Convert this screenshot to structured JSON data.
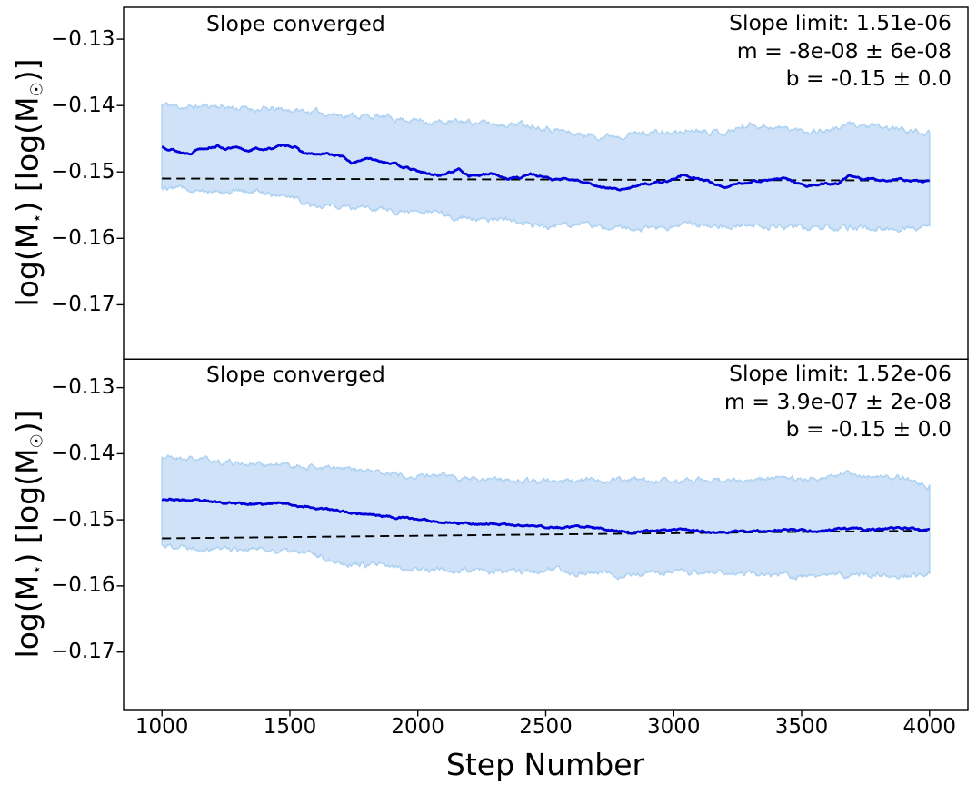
{
  "figure": {
    "xlabel": "Step Number",
    "ylabel_parts": {
      "p1": "log(M",
      "s1": "⋆",
      "p2": ") [log(M",
      "s2": "☉",
      "p3": ")]"
    },
    "x_ticks": [
      1000,
      1500,
      2000,
      2500,
      3000,
      3500,
      4000
    ],
    "x_tick_labels": [
      "1000",
      "1500",
      "2000",
      "2500",
      "3000",
      "3500",
      "4000"
    ],
    "colors": {
      "mean_line": "#0000d8",
      "band_fill": "#cfe2f8",
      "band_edge": "#aed2f2",
      "fit_dashed": "#000000",
      "frame": "#000000",
      "background": "#ffffff"
    }
  },
  "chart_data": [
    {
      "type": "line",
      "annotation": "Slope converged",
      "info_lines": {
        "l1": "Slope limit: 1.51e-06",
        "l2": "m = -8e-08 ± 6e-08",
        "l3": "b = -0.15 ± 0.0"
      },
      "xlim": [
        850,
        4150
      ],
      "ylim": [
        -0.1782,
        -0.1252
      ],
      "grid": false,
      "legend": null,
      "y_ticks": [
        -0.13,
        -0.14,
        -0.15,
        -0.16,
        -0.17
      ],
      "y_tick_labels": [
        "−0.13",
        "−0.14",
        "−0.15",
        "−0.16",
        "−0.17"
      ],
      "fit": {
        "x": [
          1000,
          4000
        ],
        "y": [
          -0.151,
          -0.1513
        ]
      },
      "series": {
        "mean": [
          [
            1000,
            -0.1462
          ],
          [
            1040,
            -0.1466
          ],
          [
            1075,
            -0.1471
          ],
          [
            1110,
            -0.1472
          ],
          [
            1140,
            -0.1465
          ],
          [
            1180,
            -0.1463
          ],
          [
            1215,
            -0.1461
          ],
          [
            1250,
            -0.1465
          ],
          [
            1290,
            -0.1464
          ],
          [
            1330,
            -0.1468
          ],
          [
            1370,
            -0.1465
          ],
          [
            1410,
            -0.1466
          ],
          [
            1455,
            -0.1462
          ],
          [
            1490,
            -0.1459
          ],
          [
            1520,
            -0.1463
          ],
          [
            1555,
            -0.1472
          ],
          [
            1600,
            -0.1474
          ],
          [
            1650,
            -0.1473
          ],
          [
            1700,
            -0.1476
          ],
          [
            1745,
            -0.1487
          ],
          [
            1790,
            -0.148
          ],
          [
            1840,
            -0.1482
          ],
          [
            1890,
            -0.1486
          ],
          [
            1940,
            -0.1492
          ],
          [
            1990,
            -0.1498
          ],
          [
            2040,
            -0.1503
          ],
          [
            2090,
            -0.1505
          ],
          [
            2130,
            -0.15
          ],
          [
            2160,
            -0.1496
          ],
          [
            2200,
            -0.1505
          ],
          [
            2250,
            -0.1505
          ],
          [
            2300,
            -0.1503
          ],
          [
            2350,
            -0.151
          ],
          [
            2400,
            -0.1508
          ],
          [
            2440,
            -0.1503
          ],
          [
            2480,
            -0.1506
          ],
          [
            2530,
            -0.1512
          ],
          [
            2575,
            -0.1511
          ],
          [
            2620,
            -0.1513
          ],
          [
            2680,
            -0.1518
          ],
          [
            2730,
            -0.1524
          ],
          [
            2810,
            -0.1527
          ],
          [
            2870,
            -0.1518
          ],
          [
            2930,
            -0.1516
          ],
          [
            2980,
            -0.1513
          ],
          [
            3035,
            -0.1505
          ],
          [
            3090,
            -0.151
          ],
          [
            3130,
            -0.1514
          ],
          [
            3200,
            -0.1523
          ],
          [
            3260,
            -0.1517
          ],
          [
            3310,
            -0.1514
          ],
          [
            3380,
            -0.1512
          ],
          [
            3435,
            -0.151
          ],
          [
            3480,
            -0.1516
          ],
          [
            3520,
            -0.1522
          ],
          [
            3570,
            -0.1519
          ],
          [
            3640,
            -0.1518
          ],
          [
            3685,
            -0.1507
          ],
          [
            3730,
            -0.151
          ],
          [
            3780,
            -0.1511
          ],
          [
            3830,
            -0.1513
          ],
          [
            3875,
            -0.151
          ],
          [
            3920,
            -0.1513
          ],
          [
            3960,
            -0.1514
          ],
          [
            4000,
            -0.1515
          ]
        ],
        "band_hi": [
          [
            1000,
            -0.1398
          ],
          [
            1100,
            -0.1403
          ],
          [
            1200,
            -0.14
          ],
          [
            1300,
            -0.1404
          ],
          [
            1400,
            -0.1406
          ],
          [
            1500,
            -0.1407
          ],
          [
            1600,
            -0.141
          ],
          [
            1700,
            -0.1414
          ],
          [
            1800,
            -0.1416
          ],
          [
            1900,
            -0.1419
          ],
          [
            2000,
            -0.1422
          ],
          [
            2100,
            -0.1426
          ],
          [
            2200,
            -0.1424
          ],
          [
            2300,
            -0.1428
          ],
          [
            2400,
            -0.1427
          ],
          [
            2500,
            -0.1432
          ],
          [
            2600,
            -0.1442
          ],
          [
            2700,
            -0.1446
          ],
          [
            2800,
            -0.1444
          ],
          [
            2900,
            -0.144
          ],
          [
            3000,
            -0.1442
          ],
          [
            3100,
            -0.1435
          ],
          [
            3200,
            -0.1441
          ],
          [
            3300,
            -0.1428
          ],
          [
            3400,
            -0.1433
          ],
          [
            3500,
            -0.1438
          ],
          [
            3600,
            -0.1437
          ],
          [
            3700,
            -0.1428
          ],
          [
            3800,
            -0.1433
          ],
          [
            3900,
            -0.1436
          ],
          [
            4000,
            -0.1443
          ]
        ],
        "band_lo": [
          [
            1000,
            -0.1523
          ],
          [
            1100,
            -0.1525
          ],
          [
            1200,
            -0.1527
          ],
          [
            1300,
            -0.1529
          ],
          [
            1400,
            -0.1531
          ],
          [
            1500,
            -0.1535
          ],
          [
            1570,
            -0.1547
          ],
          [
            1650,
            -0.1551
          ],
          [
            1750,
            -0.1553
          ],
          [
            1850,
            -0.1556
          ],
          [
            1950,
            -0.1559
          ],
          [
            2050,
            -0.1562
          ],
          [
            2150,
            -0.1568
          ],
          [
            2250,
            -0.157
          ],
          [
            2350,
            -0.1572
          ],
          [
            2450,
            -0.158
          ],
          [
            2550,
            -0.1582
          ],
          [
            2650,
            -0.1578
          ],
          [
            2750,
            -0.1584
          ],
          [
            2850,
            -0.1587
          ],
          [
            2950,
            -0.1583
          ],
          [
            3050,
            -0.1581
          ],
          [
            3150,
            -0.158
          ],
          [
            3250,
            -0.1579
          ],
          [
            3350,
            -0.1581
          ],
          [
            3450,
            -0.1583
          ],
          [
            3550,
            -0.1585
          ],
          [
            3650,
            -0.1583
          ],
          [
            3750,
            -0.1584
          ],
          [
            3850,
            -0.1586
          ],
          [
            3950,
            -0.1584
          ],
          [
            4000,
            -0.1584
          ]
        ]
      }
    },
    {
      "type": "line",
      "annotation": "Slope converged",
      "info_lines": {
        "l1": "Slope limit: 1.52e-06",
        "l2": "m = 3.9e-07 ± 2e-08",
        "l3": "b = -0.15 ± 0.0"
      },
      "xlim": [
        850,
        4150
      ],
      "ylim": [
        -0.1787,
        -0.1257
      ],
      "grid": false,
      "legend": null,
      "y_ticks": [
        -0.13,
        -0.14,
        -0.15,
        -0.16,
        -0.17
      ],
      "y_tick_labels": [
        "−0.13",
        "−0.14",
        "−0.15",
        "−0.16",
        "−0.17"
      ],
      "fit": {
        "x": [
          1000,
          4000
        ],
        "y": [
          -0.1528,
          -0.15163
        ]
      },
      "series": {
        "mean": [
          [
            1000,
            -0.1468
          ],
          [
            1060,
            -0.147
          ],
          [
            1130,
            -0.1471
          ],
          [
            1200,
            -0.1473
          ],
          [
            1270,
            -0.1474
          ],
          [
            1340,
            -0.1476
          ],
          [
            1410,
            -0.1477
          ],
          [
            1465,
            -0.1473
          ],
          [
            1520,
            -0.1478
          ],
          [
            1580,
            -0.1481
          ],
          [
            1640,
            -0.1484
          ],
          [
            1700,
            -0.1487
          ],
          [
            1760,
            -0.149
          ],
          [
            1820,
            -0.1492
          ],
          [
            1880,
            -0.1495
          ],
          [
            1940,
            -0.1497
          ],
          [
            2000,
            -0.1499
          ],
          [
            2060,
            -0.1502
          ],
          [
            2120,
            -0.1504
          ],
          [
            2180,
            -0.1505
          ],
          [
            2240,
            -0.1506
          ],
          [
            2300,
            -0.1506
          ],
          [
            2360,
            -0.1508
          ],
          [
            2420,
            -0.1509
          ],
          [
            2480,
            -0.151
          ],
          [
            2540,
            -0.1512
          ],
          [
            2600,
            -0.1511
          ],
          [
            2660,
            -0.1511
          ],
          [
            2720,
            -0.1514
          ],
          [
            2790,
            -0.1517
          ],
          [
            2850,
            -0.1519
          ],
          [
            2910,
            -0.1517
          ],
          [
            2970,
            -0.1515
          ],
          [
            3030,
            -0.1513
          ],
          [
            3090,
            -0.1516
          ],
          [
            3140,
            -0.152
          ],
          [
            3200,
            -0.1518
          ],
          [
            3260,
            -0.1517
          ],
          [
            3330,
            -0.1517
          ],
          [
            3400,
            -0.1516
          ],
          [
            3470,
            -0.1515
          ],
          [
            3540,
            -0.1517
          ],
          [
            3600,
            -0.1516
          ],
          [
            3660,
            -0.1513
          ],
          [
            3720,
            -0.1514
          ],
          [
            3790,
            -0.1515
          ],
          [
            3850,
            -0.1514
          ],
          [
            3900,
            -0.1512
          ],
          [
            3950,
            -0.1514
          ],
          [
            4000,
            -0.1515
          ]
        ],
        "band_hi": [
          [
            1000,
            -0.1405
          ],
          [
            1100,
            -0.1407
          ],
          [
            1200,
            -0.141
          ],
          [
            1300,
            -0.1414
          ],
          [
            1400,
            -0.1416
          ],
          [
            1500,
            -0.1418
          ],
          [
            1600,
            -0.142
          ],
          [
            1700,
            -0.1424
          ],
          [
            1800,
            -0.1427
          ],
          [
            1900,
            -0.143
          ],
          [
            2000,
            -0.1432
          ],
          [
            2100,
            -0.1434
          ],
          [
            2200,
            -0.1436
          ],
          [
            2300,
            -0.1437
          ],
          [
            2400,
            -0.144
          ],
          [
            2500,
            -0.1442
          ],
          [
            2600,
            -0.1441
          ],
          [
            2700,
            -0.144
          ],
          [
            2800,
            -0.1439
          ],
          [
            2900,
            -0.1441
          ],
          [
            3000,
            -0.144
          ],
          [
            3100,
            -0.1439
          ],
          [
            3200,
            -0.1441
          ],
          [
            3300,
            -0.144
          ],
          [
            3400,
            -0.1439
          ],
          [
            3500,
            -0.1437
          ],
          [
            3600,
            -0.1434
          ],
          [
            3700,
            -0.1431
          ],
          [
            3800,
            -0.1435
          ],
          [
            3900,
            -0.1438
          ],
          [
            4000,
            -0.1448
          ]
        ],
        "band_lo": [
          [
            1000,
            -0.1538
          ],
          [
            1100,
            -0.154
          ],
          [
            1200,
            -0.1542
          ],
          [
            1300,
            -0.1543
          ],
          [
            1400,
            -0.1545
          ],
          [
            1500,
            -0.1548
          ],
          [
            1600,
            -0.1553
          ],
          [
            1700,
            -0.1564
          ],
          [
            1800,
            -0.1568
          ],
          [
            1900,
            -0.1572
          ],
          [
            2000,
            -0.1574
          ],
          [
            2100,
            -0.1576
          ],
          [
            2200,
            -0.1577
          ],
          [
            2300,
            -0.1579
          ],
          [
            2400,
            -0.1578
          ],
          [
            2500,
            -0.1577
          ],
          [
            2600,
            -0.1579
          ],
          [
            2700,
            -0.1581
          ],
          [
            2800,
            -0.1583
          ],
          [
            2900,
            -0.1581
          ],
          [
            3000,
            -0.158
          ],
          [
            3100,
            -0.1579
          ],
          [
            3200,
            -0.1581
          ],
          [
            3300,
            -0.1582
          ],
          [
            3400,
            -0.1583
          ],
          [
            3500,
            -0.1586
          ],
          [
            3600,
            -0.1585
          ],
          [
            3700,
            -0.1584
          ],
          [
            3800,
            -0.1582
          ],
          [
            3900,
            -0.1583
          ],
          [
            4000,
            -0.1584
          ]
        ]
      }
    }
  ]
}
